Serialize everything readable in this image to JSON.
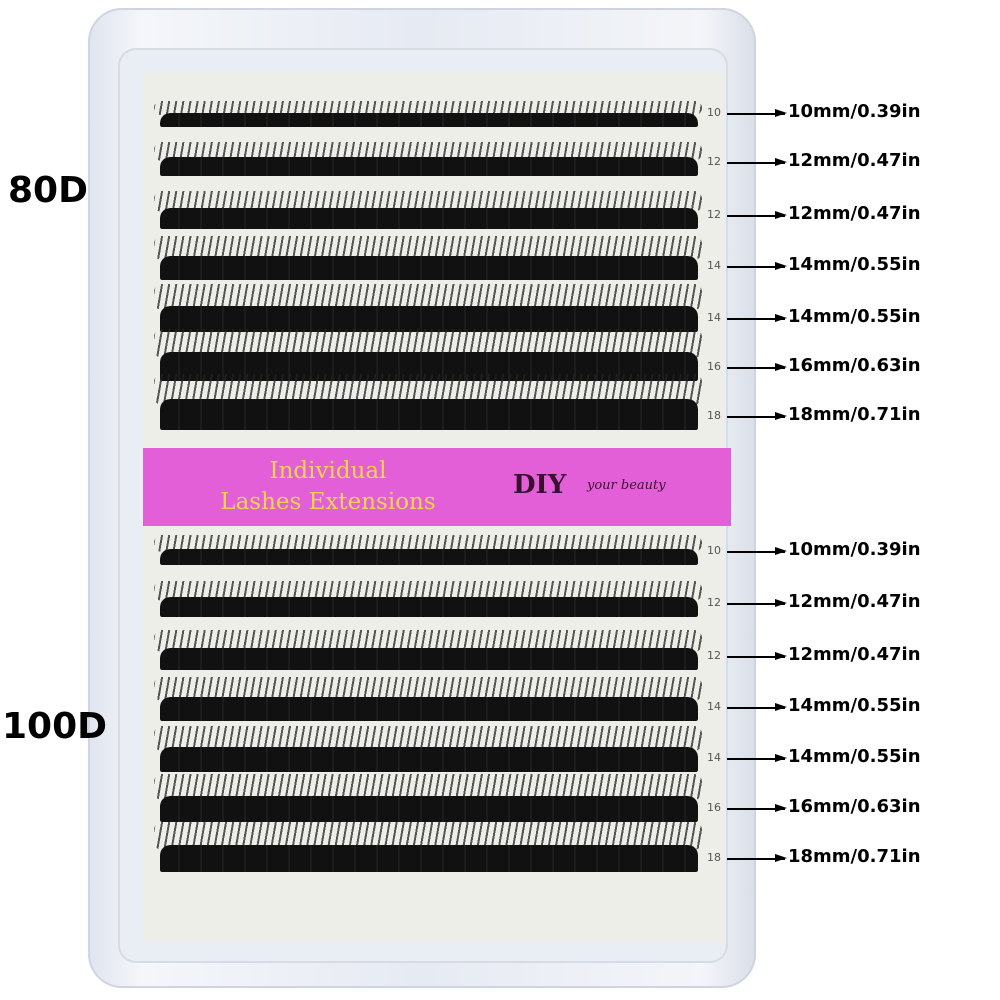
{
  "product": {
    "banner_title_line1": "Individual",
    "banner_title_line2": "Lashes Extensions",
    "brand": "DIY",
    "tagline": "your beauty",
    "banner_color": "#e35fd8",
    "banner_text_color": "#f6d34e"
  },
  "groups": [
    {
      "label": "80D",
      "rows": [
        {
          "tray_mark": "10",
          "length": "10mm/0.39in"
        },
        {
          "tray_mark": "12",
          "length": "12mm/0.47in"
        },
        {
          "tray_mark": "12",
          "length": "12mm/0.47in"
        },
        {
          "tray_mark": "14",
          "length": "14mm/0.55in"
        },
        {
          "tray_mark": "14",
          "length": "14mm/0.55in"
        },
        {
          "tray_mark": "16",
          "length": "16mm/0.63in"
        },
        {
          "tray_mark": "18",
          "length": "18mm/0.71in"
        }
      ]
    },
    {
      "label": "100D",
      "rows": [
        {
          "tray_mark": "10",
          "length": "10mm/0.39in"
        },
        {
          "tray_mark": "12",
          "length": "12mm/0.47in"
        },
        {
          "tray_mark": "12",
          "length": "12mm/0.47in"
        },
        {
          "tray_mark": "14",
          "length": "14mm/0.55in"
        },
        {
          "tray_mark": "14",
          "length": "14mm/0.55in"
        },
        {
          "tray_mark": "16",
          "length": "16mm/0.63in"
        },
        {
          "tray_mark": "18",
          "length": "18mm/0.71in"
        }
      ]
    }
  ]
}
